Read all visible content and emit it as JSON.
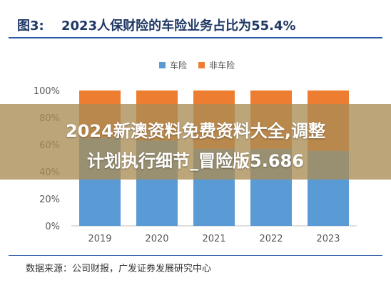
{
  "figure": {
    "label": "图3:",
    "title": "2023人保财险的车险业务占比为55.4%"
  },
  "overlay": {
    "line1": "2024新澳资料免费资料大全,调整",
    "line2": "计划执行细节_冒险版5.686"
  },
  "source": "数据来源：公司财报，广发证券发展研究中心",
  "colors": {
    "auto": "#5b9bd5",
    "non_auto": "#ed7d31",
    "title": "#1f3864",
    "rule": "#2e5aa8"
  },
  "chart_data": {
    "type": "bar",
    "stacked": true,
    "percent": true,
    "categories": [
      "2019",
      "2020",
      "2021",
      "2022",
      "2023"
    ],
    "series": [
      {
        "name": "车险",
        "values": [
          65.0,
          63.0,
          57.0,
          57.0,
          55.4
        ]
      },
      {
        "name": "非车险",
        "values": [
          35.0,
          37.0,
          43.0,
          43.0,
          44.6
        ]
      }
    ],
    "yticks": [
      "0%",
      "20%",
      "40%",
      "60%",
      "80%",
      "100%"
    ],
    "ylim": [
      0,
      100
    ],
    "grid": false,
    "legend_position": "top-center"
  }
}
